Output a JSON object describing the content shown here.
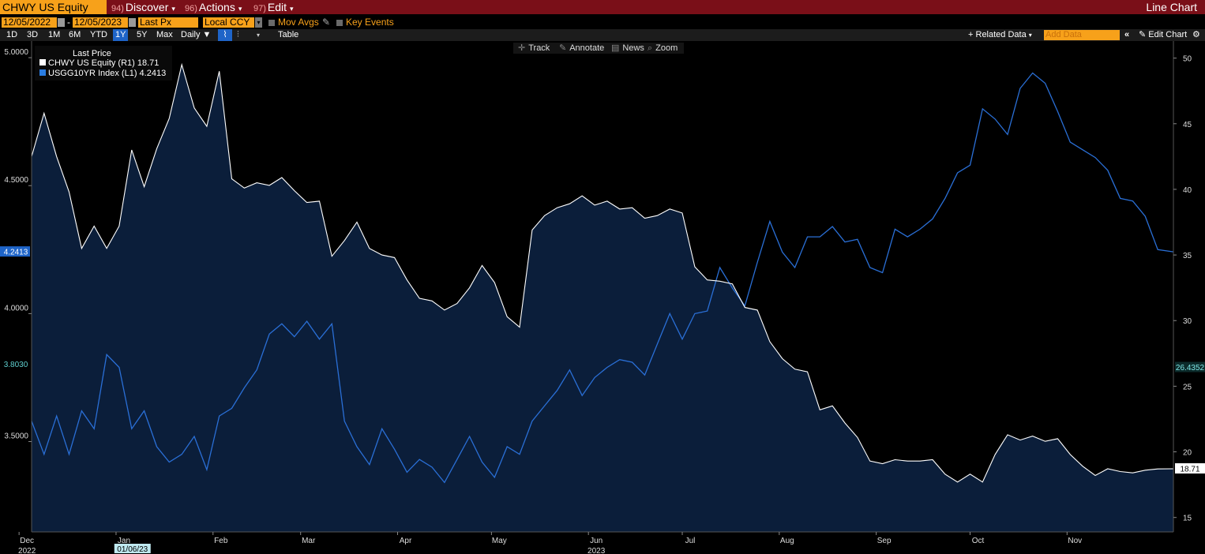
{
  "toolbar": {
    "security": "CHWY US Equity",
    "menus": [
      {
        "num": "94)",
        "label": "Discover"
      },
      {
        "num": "96)",
        "label": "Actions"
      },
      {
        "num": "97)",
        "label": "Edit"
      }
    ],
    "chart_name": "Line Chart"
  },
  "controls": {
    "start_date": "12/05/2022",
    "end_date": "12/05/2023",
    "field": "Last Px",
    "currency": "Local CCY",
    "mov_avgs": "Mov Avgs",
    "key_events": "Key Events"
  },
  "periods": [
    "1D",
    "3D",
    "1M",
    "6M",
    "YTD",
    "1Y",
    "5Y",
    "Max"
  ],
  "active_period": "1Y",
  "frequency": "Daily",
  "table_label": "Table",
  "related_data": "Related Data",
  "add_data_placeholder": "Add Data",
  "edit_chart": "Edit Chart",
  "chart_tools": [
    "Track",
    "Annotate",
    "News",
    "Zoom"
  ],
  "legend": {
    "title": "Last Price",
    "items": [
      {
        "label": "CHWY US Equity  (R1)  18.71",
        "color": "#ffffff"
      },
      {
        "label": "USGG10YR Index  (L1)  4.2413",
        "color": "#2a7de1"
      }
    ]
  },
  "colors": {
    "area_fill": "#0b1e3a",
    "ust_line": "#2a6fd6",
    "chwy_line": "#ffffff",
    "flag_blue": "#1e64c8",
    "flag_teal": "#1c6f6f"
  },
  "chart_data": {
    "type": "line",
    "x_range": [
      "2022-12-05",
      "2023-12-05"
    ],
    "left_axis": {
      "ticks": [
        "3.5000",
        "4.0000",
        "4.5000",
        "5.0000"
      ],
      "tick_values": [
        3.5,
        4.0,
        4.5,
        5.0
      ],
      "range": [
        3.147,
        5.065
      ]
    },
    "right_axis": {
      "ticks": [
        "15",
        "20",
        "25",
        "30",
        "35",
        "40",
        "45",
        "50"
      ],
      "tick_values": [
        15,
        20,
        25,
        30,
        35,
        40,
        45,
        50
      ],
      "range": [
        13.9,
        51.3
      ]
    },
    "x_ticks": [
      {
        "label": "Dec",
        "sub": "2022",
        "date": "2022-12-01"
      },
      {
        "label": "Jan",
        "date": "2023-01-01"
      },
      {
        "label": "Feb",
        "date": "2023-02-01"
      },
      {
        "label": "Mar",
        "date": "2023-03-01"
      },
      {
        "label": "Apr",
        "date": "2023-04-01"
      },
      {
        "label": "May",
        "date": "2023-05-01"
      },
      {
        "label": "Jun",
        "sub": "2023",
        "date": "2023-06-01"
      },
      {
        "label": "Jul",
        "date": "2023-07-01"
      },
      {
        "label": "Aug",
        "date": "2023-08-01"
      },
      {
        "label": "Sep",
        "date": "2023-09-01"
      },
      {
        "label": "Oct",
        "date": "2023-10-01"
      },
      {
        "label": "Nov",
        "date": "2023-11-01"
      }
    ],
    "x_flag": {
      "label": "01/06/23",
      "date": "2023-01-06"
    },
    "left_flags": [
      {
        "label": "4.2413",
        "value": 4.2413,
        "style": "blue"
      },
      {
        "label": "3.8030",
        "value": 3.803,
        "style": "teal"
      }
    ],
    "right_flags": [
      {
        "label": "26.4352",
        "value": 26.4352,
        "style": "teal"
      },
      {
        "label": "18.71",
        "value": 18.71,
        "style": "white"
      }
    ],
    "series": [
      {
        "name": "USGG10YR Index",
        "axis": "left",
        "color": "#2a6fd6",
        "x": [
          "2022-12-05",
          "2022-12-09",
          "2022-12-13",
          "2022-12-17",
          "2022-12-21",
          "2022-12-25",
          "2022-12-29",
          "2023-01-02",
          "2023-01-06",
          "2023-01-10",
          "2023-01-14",
          "2023-01-18",
          "2023-01-22",
          "2023-01-26",
          "2023-01-30",
          "2023-02-03",
          "2023-02-07",
          "2023-02-11",
          "2023-02-15",
          "2023-02-19",
          "2023-02-23",
          "2023-02-27",
          "2023-03-03",
          "2023-03-07",
          "2023-03-11",
          "2023-03-15",
          "2023-03-19",
          "2023-03-23",
          "2023-03-27",
          "2023-03-31",
          "2023-04-04",
          "2023-04-08",
          "2023-04-12",
          "2023-04-16",
          "2023-04-20",
          "2023-04-24",
          "2023-04-28",
          "2023-05-02",
          "2023-05-06",
          "2023-05-10",
          "2023-05-14",
          "2023-05-18",
          "2023-05-22",
          "2023-05-26",
          "2023-05-30",
          "2023-06-03",
          "2023-06-07",
          "2023-06-11",
          "2023-06-15",
          "2023-06-19",
          "2023-06-23",
          "2023-06-27",
          "2023-07-01",
          "2023-07-05",
          "2023-07-09",
          "2023-07-13",
          "2023-07-17",
          "2023-07-21",
          "2023-07-25",
          "2023-07-29",
          "2023-08-02",
          "2023-08-06",
          "2023-08-10",
          "2023-08-14",
          "2023-08-18",
          "2023-08-22",
          "2023-08-26",
          "2023-08-30",
          "2023-09-03",
          "2023-09-07",
          "2023-09-11",
          "2023-09-15",
          "2023-09-19",
          "2023-09-23",
          "2023-09-27",
          "2023-10-01",
          "2023-10-05",
          "2023-10-09",
          "2023-10-13",
          "2023-10-17",
          "2023-10-21",
          "2023-10-25",
          "2023-10-29",
          "2023-11-02",
          "2023-11-06",
          "2023-11-10",
          "2023-11-14",
          "2023-11-18",
          "2023-11-22",
          "2023-11-26",
          "2023-11-30",
          "2023-12-05"
        ],
        "y": [
          3.58,
          3.45,
          3.6,
          3.45,
          3.62,
          3.55,
          3.84,
          3.79,
          3.55,
          3.62,
          3.48,
          3.42,
          3.45,
          3.52,
          3.39,
          3.6,
          3.63,
          3.71,
          3.78,
          3.92,
          3.96,
          3.91,
          3.97,
          3.9,
          3.96,
          3.58,
          3.48,
          3.41,
          3.55,
          3.47,
          3.38,
          3.43,
          3.4,
          3.34,
          3.43,
          3.52,
          3.42,
          3.36,
          3.48,
          3.45,
          3.58,
          3.64,
          3.7,
          3.78,
          3.68,
          3.75,
          3.79,
          3.82,
          3.81,
          3.76,
          3.88,
          4.0,
          3.9,
          4.0,
          4.01,
          4.18,
          4.1,
          4.03,
          4.2,
          4.36,
          4.24,
          4.18,
          4.3,
          4.3,
          4.34,
          4.28,
          4.29,
          4.18,
          4.16,
          4.33,
          4.3,
          4.33,
          4.37,
          4.45,
          4.55,
          4.58,
          4.8,
          4.76,
          4.7,
          4.88,
          4.94,
          4.9,
          4.79,
          4.67,
          4.64,
          4.61,
          4.56,
          4.45,
          4.44,
          4.38,
          4.25,
          4.2413
        ]
      },
      {
        "name": "CHWY US Equity",
        "axis": "right",
        "color": "#ffffff",
        "x": [
          "2022-12-05",
          "2022-12-09",
          "2022-12-13",
          "2022-12-17",
          "2022-12-21",
          "2022-12-25",
          "2022-12-29",
          "2023-01-02",
          "2023-01-06",
          "2023-01-10",
          "2023-01-14",
          "2023-01-18",
          "2023-01-22",
          "2023-01-26",
          "2023-01-30",
          "2023-02-03",
          "2023-02-07",
          "2023-02-11",
          "2023-02-15",
          "2023-02-19",
          "2023-02-23",
          "2023-02-27",
          "2023-03-03",
          "2023-03-07",
          "2023-03-11",
          "2023-03-15",
          "2023-03-19",
          "2023-03-23",
          "2023-03-27",
          "2023-03-31",
          "2023-04-04",
          "2023-04-08",
          "2023-04-12",
          "2023-04-16",
          "2023-04-20",
          "2023-04-24",
          "2023-04-28",
          "2023-05-02",
          "2023-05-06",
          "2023-05-10",
          "2023-05-14",
          "2023-05-18",
          "2023-05-22",
          "2023-05-26",
          "2023-05-30",
          "2023-06-03",
          "2023-06-07",
          "2023-06-11",
          "2023-06-15",
          "2023-06-19",
          "2023-06-23",
          "2023-06-27",
          "2023-07-01",
          "2023-07-05",
          "2023-07-09",
          "2023-07-13",
          "2023-07-17",
          "2023-07-21",
          "2023-07-25",
          "2023-07-29",
          "2023-08-02",
          "2023-08-06",
          "2023-08-10",
          "2023-08-14",
          "2023-08-18",
          "2023-08-22",
          "2023-08-26",
          "2023-08-30",
          "2023-09-03",
          "2023-09-07",
          "2023-09-11",
          "2023-09-15",
          "2023-09-19",
          "2023-09-23",
          "2023-09-27",
          "2023-10-01",
          "2023-10-05",
          "2023-10-09",
          "2023-10-13",
          "2023-10-17",
          "2023-10-21",
          "2023-10-25",
          "2023-10-29",
          "2023-11-02",
          "2023-11-06",
          "2023-11-10",
          "2023-11-14",
          "2023-11-18",
          "2023-11-22",
          "2023-11-26",
          "2023-11-30",
          "2023-12-05"
        ],
        "y": [
          42.5,
          45.8,
          42.5,
          39.8,
          35.5,
          37.2,
          35.5,
          37.2,
          43.0,
          40.2,
          43.1,
          45.4,
          49.5,
          46.2,
          44.8,
          49.0,
          40.8,
          40.1,
          40.5,
          40.3,
          40.9,
          39.9,
          39.0,
          39.1,
          34.9,
          36.1,
          37.5,
          35.5,
          35.0,
          34.8,
          33.1,
          31.7,
          31.5,
          30.8,
          31.3,
          32.5,
          34.2,
          32.9,
          30.3,
          29.5,
          36.9,
          38.0,
          38.6,
          38.9,
          39.5,
          38.8,
          39.1,
          38.5,
          38.6,
          37.8,
          38.0,
          38.5,
          38.2,
          34.1,
          33.1,
          33.0,
          32.8,
          31.0,
          30.8,
          28.4,
          27.1,
          26.3,
          26.1,
          23.2,
          23.5,
          22.2,
          21.1,
          19.3,
          19.1,
          19.4,
          19.3,
          19.3,
          19.4,
          18.3,
          17.7,
          18.3,
          17.7,
          19.8,
          21.3,
          20.9,
          21.2,
          20.8,
          21.0,
          19.8,
          18.9,
          18.2,
          18.71,
          18.5,
          18.4,
          18.6,
          18.7,
          18.71
        ]
      }
    ]
  }
}
